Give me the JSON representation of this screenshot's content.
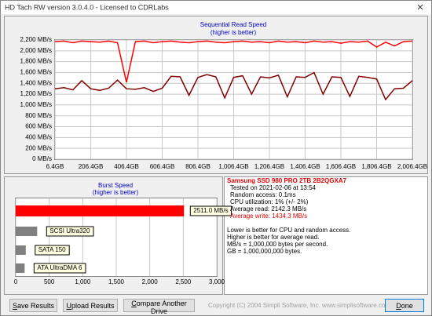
{
  "window": {
    "title": "HD Tach RW version 3.0.4.0 - Licensed to CDRLabs"
  },
  "chart_data": [
    {
      "type": "line",
      "title": "Sequential Read Speed",
      "subtitle": "(higher is better)",
      "x": [
        6.4,
        56.4,
        106.4,
        156.4,
        206.4,
        256.4,
        306.4,
        356.4,
        406.4,
        456.4,
        506.4,
        556.4,
        606.4,
        656.4,
        706.4,
        756.4,
        806.4,
        856.4,
        906.4,
        956.4,
        1006.4,
        1056.4,
        1106.4,
        1156.4,
        1206.4,
        1256.4,
        1306.4,
        1356.4,
        1406.4,
        1456.4,
        1506.4,
        1556.4,
        1606.4,
        1656.4,
        1706.4,
        1756.4,
        1806.4,
        1856.4,
        1906.4,
        1956.4,
        2006.4
      ],
      "series": [
        {
          "color": "#ff0000",
          "values": [
            2170,
            2180,
            2150,
            2180,
            2170,
            2160,
            2180,
            2150,
            1420,
            2170,
            2180,
            2150,
            2170,
            2180,
            2160,
            2150,
            2170,
            2180,
            2160,
            2150,
            2170,
            2180,
            2160,
            2170,
            2150,
            2180,
            2160,
            2170,
            2150,
            2180,
            2160,
            2170,
            2140,
            2170,
            2160,
            2180,
            2070,
            2160,
            2090,
            2170,
            2180
          ]
        },
        {
          "color": "#800000",
          "values": [
            1300,
            1320,
            1280,
            1450,
            1300,
            1270,
            1310,
            1460,
            1300,
            1290,
            1320,
            1250,
            1310,
            1530,
            1520,
            1180,
            1510,
            1560,
            1520,
            1130,
            1510,
            1540,
            1200,
            1520,
            1500,
            1550,
            1150,
            1520,
            1510,
            1600,
            1200,
            1520,
            1510,
            1160,
            1530,
            1510,
            1480,
            1100,
            1300,
            1310,
            1450
          ]
        }
      ],
      "xlim": [
        6.4,
        2006.4
      ],
      "xticks": [
        {
          "value": 6.4,
          "label": "6.4GB"
        },
        {
          "value": 206.4,
          "label": "206.4GB"
        },
        {
          "value": 406.4,
          "label": "406.4GB"
        },
        {
          "value": 606.4,
          "label": "606.4GB"
        },
        {
          "value": 806.4,
          "label": "806.4GB"
        },
        {
          "value": 1006.4,
          "label": "1,006.4GB"
        },
        {
          "value": 1206.4,
          "label": "1,206.4GB"
        },
        {
          "value": 1406.4,
          "label": "1,406.4GB"
        },
        {
          "value": 1606.4,
          "label": "1,606.4GB"
        },
        {
          "value": 1806.4,
          "label": "1,806.4GB"
        },
        {
          "value": 2006.4,
          "label": "2,006.4GB"
        }
      ],
      "ylim": [
        0,
        2200
      ],
      "yticks": [
        {
          "value": 0,
          "label": "0 MB/s"
        },
        {
          "value": 200,
          "label": "200 MB/s"
        },
        {
          "value": 400,
          "label": "400 MB/s"
        },
        {
          "value": 600,
          "label": "600 MB/s"
        },
        {
          "value": 800,
          "label": "800 MB/s"
        },
        {
          "value": 1000,
          "label": "1,000 MB/s"
        },
        {
          "value": 1200,
          "label": "1,200 MB/s"
        },
        {
          "value": 1400,
          "label": "1,400 MB/s"
        },
        {
          "value": 1600,
          "label": "1,600 MB/s"
        },
        {
          "value": 1800,
          "label": "1,800 MB/s"
        },
        {
          "value": 2000,
          "label": "2,000 MB/s"
        },
        {
          "value": 2200,
          "label": "2,200 MB/s"
        }
      ],
      "grid": true
    },
    {
      "type": "bar",
      "orientation": "horizontal",
      "title": "Burst Speed",
      "subtitle": "(higher is better)",
      "categories": [
        null,
        "SCSI Ultra320",
        "SATA 150",
        "ATA UltraDMA 6"
      ],
      "values": [
        2511,
        320,
        150,
        133
      ],
      "value_labels": [
        "2511.0 MB/s",
        null,
        null,
        null
      ],
      "colors": [
        "#ff0000",
        "#808080",
        "#808080",
        "#808080"
      ],
      "xlim": [
        0,
        3000
      ],
      "xticks": [
        0,
        500,
        {
          "value": 1000,
          "label": "1,000"
        },
        {
          "value": 1500,
          "label": "1,500"
        },
        {
          "value": 2000,
          "label": "2,000"
        },
        {
          "value": 2500,
          "label": "2,500"
        },
        {
          "value": 3000,
          "label": "3,000"
        }
      ],
      "grid": true
    }
  ],
  "info": {
    "drive": "Samsung SSD 980 PRO 2TB 2B2QGXA7",
    "lines": [
      "Tested on 2021-02-06 at 13:54",
      "Random access: 0.1ms",
      "CPU utilization: 1% (+/- 2%)",
      "Average read: 2142.3 MB/s",
      "Average write: 1434.3 MB/s"
    ],
    "notes": [
      "Lower is better for CPU and random access.",
      "Higher is better for average read.",
      "MB/s = 1,000,000 bytes per second.",
      "GB = 1,000,000,000 bytes."
    ]
  },
  "buttons": [
    "Save Results",
    "Upload Results",
    "Compare Another Drive"
  ],
  "copyright": "Copyright (C) 2004 Simpli Software, Inc. www.simplisoftware.com",
  "done": "Done"
}
